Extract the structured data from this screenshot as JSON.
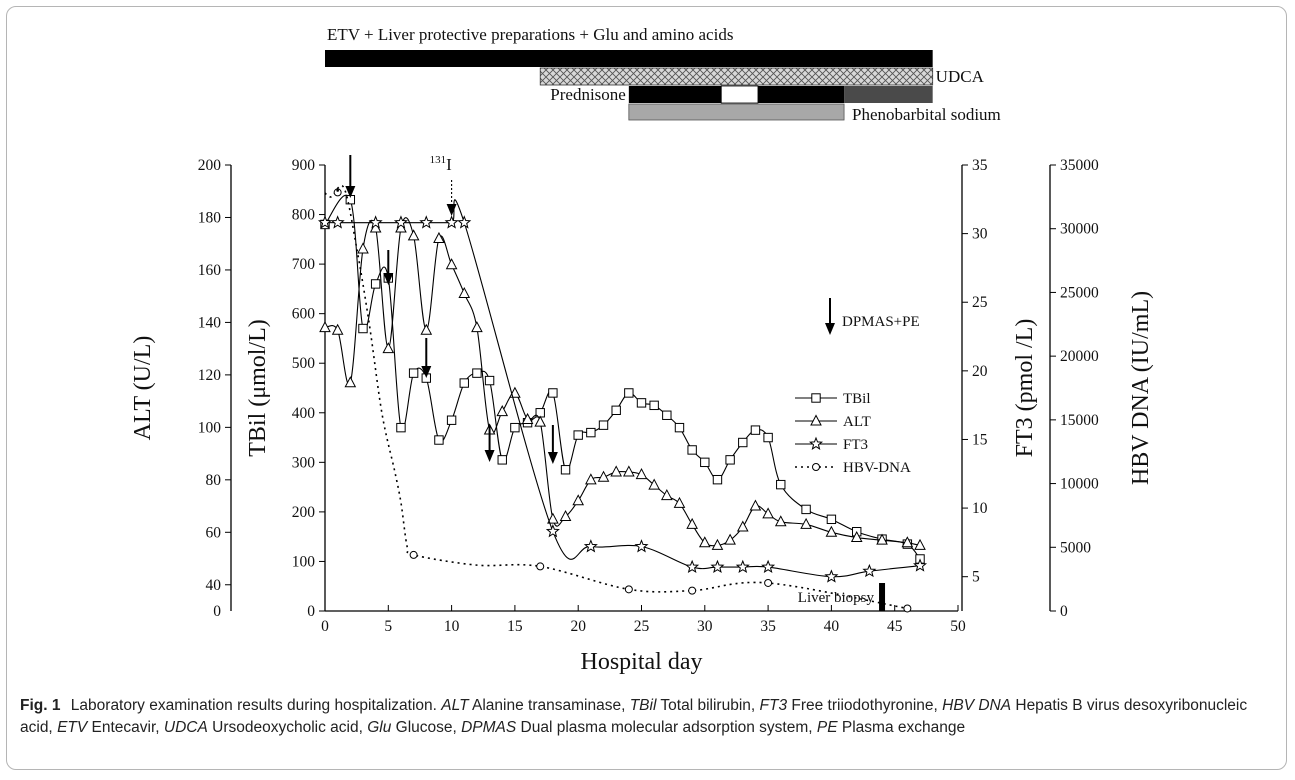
{
  "chart_data": {
    "type": "line",
    "x_range": [
      0,
      50
    ],
    "x_ticks": [
      0,
      5,
      10,
      15,
      20,
      25,
      30,
      35,
      40,
      45,
      50
    ],
    "xlabel": "Hospital day",
    "axes": {
      "alt": {
        "label": "ALT (U/L)",
        "range": [
          30,
          200
        ],
        "ticks": [
          40,
          60,
          80,
          100,
          120,
          140,
          160,
          180,
          200
        ],
        "extra_tick_label": "0"
      },
      "tbil": {
        "label": "TBil (μmol/L)",
        "range": [
          0,
          900
        ],
        "ticks": [
          0,
          100,
          200,
          300,
          400,
          500,
          600,
          700,
          800,
          900
        ]
      },
      "ft3": {
        "label": "FT3 (pmol /L)",
        "range": [
          2.5,
          35
        ],
        "ticks": [
          5,
          10,
          15,
          20,
          25,
          30,
          35
        ]
      },
      "hbv": {
        "label": "HBV DNA (IU/mL)",
        "range": [
          0,
          35000
        ],
        "ticks": [
          0,
          5000,
          10000,
          15000,
          20000,
          25000,
          30000,
          35000
        ]
      }
    },
    "series": [
      {
        "name": "TBil",
        "axis": "tbil",
        "marker": "square",
        "x": [
          0,
          2,
          3,
          4,
          5,
          6,
          7,
          8,
          9,
          10,
          11,
          12,
          13,
          14,
          15,
          16,
          17,
          18,
          19,
          20,
          21,
          22,
          23,
          24,
          25,
          26,
          27,
          28,
          29,
          30,
          31,
          32,
          33,
          34,
          35,
          36,
          38,
          40,
          42,
          44,
          46,
          47
        ],
        "y": [
          780,
          830,
          570,
          660,
          672,
          370,
          480,
          470,
          345,
          385,
          460,
          480,
          465,
          305,
          370,
          380,
          400,
          440,
          285,
          355,
          360,
          375,
          405,
          440,
          420,
          415,
          395,
          370,
          325,
          300,
          265,
          305,
          340,
          365,
          350,
          255,
          205,
          185,
          160,
          145,
          135,
          105
        ]
      },
      {
        "name": "ALT",
        "axis": "alt",
        "marker": "triangle",
        "x": [
          0,
          1,
          2,
          3,
          4,
          5,
          6,
          7,
          8,
          9,
          10,
          11,
          12,
          13,
          14,
          15,
          16,
          17,
          18,
          19,
          20,
          21,
          22,
          23,
          24,
          25,
          26,
          27,
          28,
          29,
          30,
          31,
          32,
          33,
          34,
          35,
          36,
          38,
          40,
          42,
          44,
          46,
          47
        ],
        "y": [
          138,
          137,
          117,
          168,
          176,
          130,
          176,
          173,
          137,
          172,
          162,
          151,
          138,
          99,
          106,
          113,
          103,
          102,
          65,
          66,
          72,
          80,
          81,
          83,
          83,
          82,
          78,
          74,
          71,
          63,
          56,
          55,
          57,
          62,
          70,
          67,
          64,
          63,
          60,
          58,
          57,
          56,
          55
        ]
      },
      {
        "name": "FT3",
        "axis": "ft3",
        "marker": "star",
        "x": [
          0,
          1,
          4,
          6,
          8,
          10,
          11,
          18,
          21,
          25,
          29,
          31,
          33,
          35,
          40,
          43,
          47
        ],
        "y": [
          30.8,
          30.8,
          30.8,
          30.8,
          30.8,
          30.8,
          30.8,
          8.3,
          7.2,
          7.2,
          5.7,
          5.7,
          5.7,
          5.7,
          5.0,
          5.4,
          5.8
        ]
      },
      {
        "name": "HBV-DNA",
        "axis": "hbv",
        "marker": "circle",
        "dashed": true,
        "x": [
          0,
          0.5,
          1.5,
          2.5,
          3.5,
          4.5,
          5.5,
          6,
          6.5,
          7,
          12,
          17,
          24,
          29,
          35,
          46
        ],
        "y": [
          32800,
          32500,
          33200,
          28500,
          22500,
          15500,
          11000,
          8500,
          5000,
          4400,
          3600,
          3500,
          1700,
          1600,
          2200,
          200
        ],
        "markers_at": [
          1.0,
          7,
          17,
          24,
          29,
          35,
          46
        ]
      }
    ],
    "arrows_dpmas_pe": [
      2,
      5,
      8,
      13,
      18
    ],
    "annotations": {
      "iodine_day": 10,
      "iodine_label_sup": "131",
      "iodine_label": "I",
      "biopsy_day": 44,
      "biopsy_label": "Liver biopsy",
      "arrow_legend": "DPMAS+PE"
    },
    "treatment_bars": [
      {
        "label": "ETV + Liver protective preparations + Glu and amino acids",
        "start": 0,
        "end": 48
      },
      {
        "label": "UDCA",
        "start": 17,
        "end": 48
      },
      {
        "label": "Prednisone",
        "start": 24,
        "end": 48
      },
      {
        "label": "Phenobarbital sodium",
        "start": 24,
        "end": 41
      }
    ]
  },
  "caption": {
    "fig_label": "Fig. 1",
    "title": "Laboratory examination results during hospitalization.",
    "abbrevs": [
      {
        "abbr": "ALT",
        "def": "Alanine transaminase,"
      },
      {
        "abbr": "TBil",
        "def": "Total bilirubin,"
      },
      {
        "abbr": "FT3",
        "def": "Free triiodothyronine,"
      },
      {
        "abbr": "HBV DNA",
        "def": "Hepatis B virus desoxyribonucleic acid,"
      },
      {
        "abbr": "ETV",
        "def": "Entecavir,"
      },
      {
        "abbr": "UDCA",
        "def": "Ursodeoxycholic acid,"
      },
      {
        "abbr": "Glu",
        "def": "Glucose,"
      },
      {
        "abbr": "DPMAS",
        "def": "Dual plasma molecular adsorption system,"
      },
      {
        "abbr": "PE",
        "def": "Plasma exchange"
      }
    ]
  }
}
